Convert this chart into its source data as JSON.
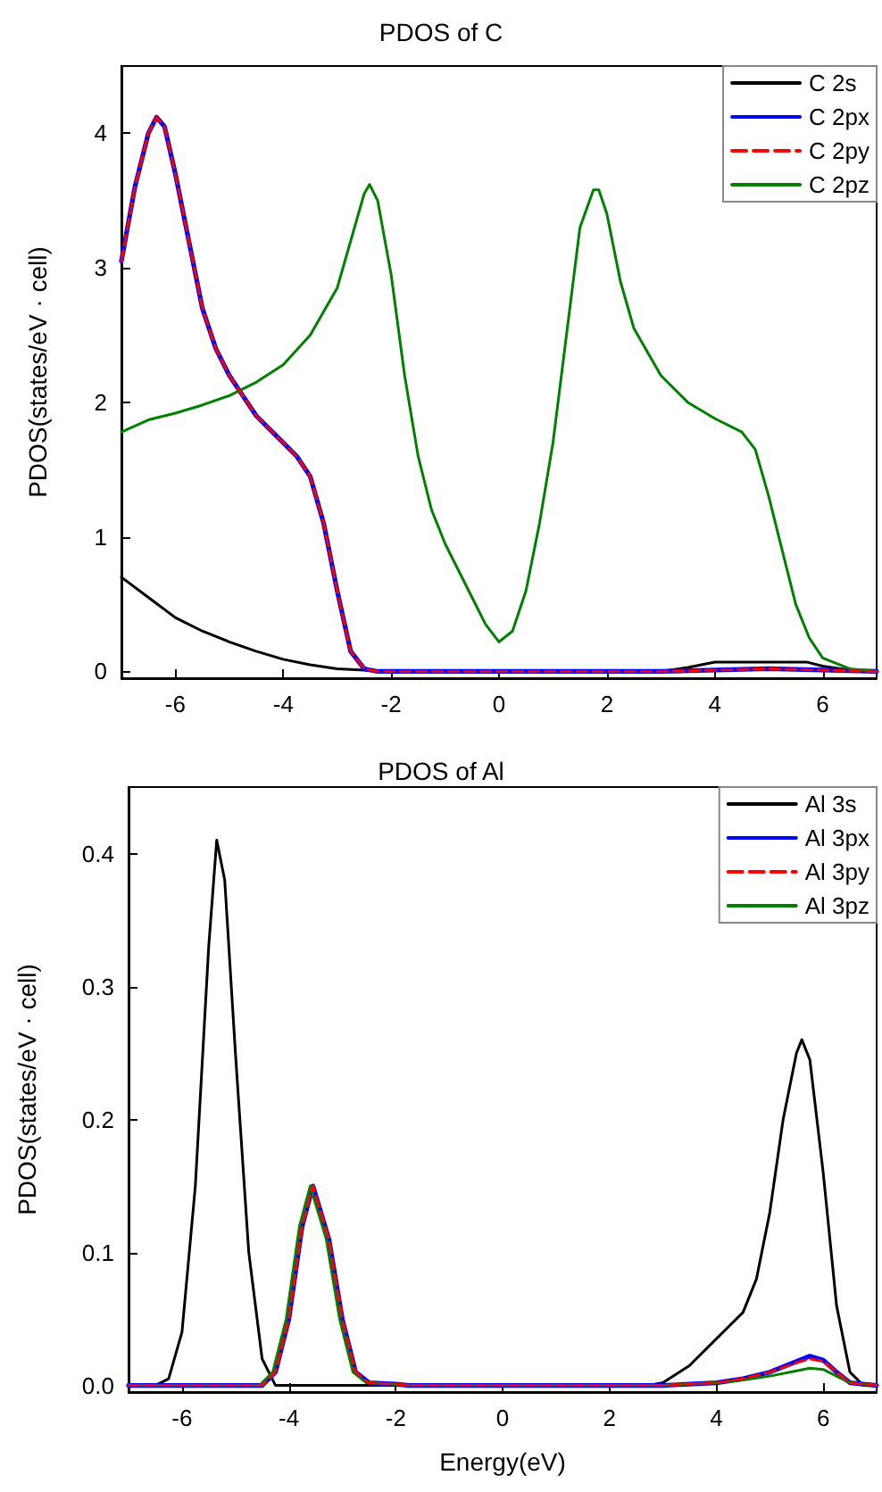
{
  "chart_data": [
    {
      "type": "line",
      "title": "PDOS of C",
      "ylabel": "PDOS(states/eV · cell)",
      "xlim": [
        -7,
        7
      ],
      "ylim": [
        -0.05,
        4.5
      ],
      "xticks": [
        -6,
        -4,
        -2,
        0,
        2,
        4,
        6
      ],
      "yticks": [
        0,
        1,
        2,
        3,
        4
      ],
      "grid": false,
      "legend": "top right",
      "marker": "none",
      "line_style": "solid",
      "series": [
        {
          "name": "C 2s",
          "color": "#000000",
          "x": [
            -7,
            -6.5,
            -6,
            -5.5,
            -5,
            -4.5,
            -4,
            -3.5,
            -3,
            -2.5,
            -2,
            0,
            3,
            3.5,
            4,
            5,
            5.7,
            6,
            6.5,
            7
          ],
          "values": [
            0.7,
            0.55,
            0.4,
            0.3,
            0.22,
            0.15,
            0.09,
            0.05,
            0.02,
            0.01,
            0,
            0,
            0,
            0.03,
            0.07,
            0.07,
            0.07,
            0.04,
            0.01,
            0
          ]
        },
        {
          "name": "C 2px",
          "color": "#0000ff",
          "x": [
            -7,
            -6.75,
            -6.5,
            -6.35,
            -6.2,
            -6,
            -5.75,
            -5.5,
            -5.25,
            -5,
            -4.75,
            -4.5,
            -4.25,
            -4,
            -3.75,
            -3.5,
            -3.25,
            -3,
            -2.75,
            -2.5,
            -2.25,
            0,
            3,
            4,
            5,
            6,
            7
          ],
          "values": [
            3.05,
            3.6,
            4.0,
            4.12,
            4.05,
            3.7,
            3.2,
            2.7,
            2.4,
            2.2,
            2.05,
            1.9,
            1.8,
            1.7,
            1.6,
            1.45,
            1.1,
            0.6,
            0.15,
            0.02,
            0,
            0,
            0,
            0.01,
            0.02,
            0.01,
            0
          ]
        },
        {
          "name": "C 2py",
          "color": "#ff0000",
          "line_style": "dashed",
          "x": [
            -7,
            -6.75,
            -6.5,
            -6.35,
            -6.2,
            -6,
            -5.75,
            -5.5,
            -5.25,
            -5,
            -4.75,
            -4.5,
            -4.25,
            -4,
            -3.75,
            -3.5,
            -3.25,
            -3,
            -2.75,
            -2.5,
            -2.25,
            0,
            3,
            4,
            5,
            6,
            7
          ],
          "values": [
            3.05,
            3.6,
            4.0,
            4.12,
            4.05,
            3.7,
            3.2,
            2.7,
            2.4,
            2.2,
            2.05,
            1.9,
            1.8,
            1.7,
            1.6,
            1.45,
            1.1,
            0.6,
            0.15,
            0.02,
            0,
            0,
            0,
            0.01,
            0.02,
            0.01,
            0
          ]
        },
        {
          "name": "C 2pz",
          "color": "#008000",
          "x": [
            -7,
            -6.5,
            -6,
            -5.5,
            -5,
            -4.5,
            -4,
            -3.5,
            -3,
            -2.75,
            -2.5,
            -2.4,
            -2.25,
            -2,
            -1.75,
            -1.5,
            -1.25,
            -1,
            -0.5,
            -0.25,
            0,
            0.25,
            0.5,
            0.75,
            1,
            1.25,
            1.5,
            1.75,
            1.85,
            2,
            2.25,
            2.5,
            3,
            3.5,
            4,
            4.5,
            4.75,
            5,
            5.25,
            5.5,
            5.75,
            6,
            6.5,
            7
          ],
          "values": [
            1.78,
            1.87,
            1.92,
            1.98,
            2.05,
            2.15,
            2.28,
            2.5,
            2.85,
            3.2,
            3.55,
            3.62,
            3.5,
            2.95,
            2.2,
            1.6,
            1.2,
            0.95,
            0.55,
            0.35,
            0.22,
            0.3,
            0.6,
            1.1,
            1.7,
            2.5,
            3.3,
            3.58,
            3.58,
            3.4,
            2.9,
            2.55,
            2.2,
            2.0,
            1.88,
            1.78,
            1.65,
            1.3,
            0.9,
            0.5,
            0.25,
            0.1,
            0.02,
            0
          ]
        }
      ]
    },
    {
      "type": "line",
      "title": "PDOS of Al",
      "xlabel": "Energy(eV)",
      "ylabel": "PDOS(states/eV · cell)",
      "xlim": [
        -7,
        7
      ],
      "ylim": [
        -0.005,
        0.45
      ],
      "xticks": [
        -6,
        -4,
        -2,
        0,
        2,
        4,
        6
      ],
      "yticks": [
        {
          "value": 0,
          "label": "0.0"
        },
        {
          "value": 0.1,
          "label": "0.1"
        },
        {
          "value": 0.2,
          "label": "0.2"
        },
        {
          "value": 0.3,
          "label": "0.3"
        },
        {
          "value": 0.4,
          "label": "0.4"
        }
      ],
      "grid": false,
      "legend": "top right",
      "marker": "none",
      "line_style": "solid",
      "series": [
        {
          "name": "Al 3s",
          "color": "#000000",
          "x": [
            -7,
            -6.5,
            -6.25,
            -6,
            -5.75,
            -5.5,
            -5.35,
            -5.2,
            -5,
            -4.75,
            -4.5,
            -4.25,
            2.75,
            3,
            3.5,
            4,
            4.25,
            4.5,
            4.75,
            5,
            5.25,
            5.5,
            5.6,
            5.75,
            6,
            6.25,
            6.5,
            6.75,
            7
          ],
          "values": [
            0,
            0,
            0.005,
            0.04,
            0.15,
            0.33,
            0.41,
            0.38,
            0.25,
            0.1,
            0.02,
            0,
            0,
            0.002,
            0.015,
            0.035,
            0.045,
            0.055,
            0.08,
            0.13,
            0.2,
            0.25,
            0.26,
            0.245,
            0.16,
            0.06,
            0.01,
            0,
            0
          ]
        },
        {
          "name": "Al 3px",
          "color": "#0000ff",
          "x": [
            -7,
            -4.5,
            -4.25,
            -4,
            -3.75,
            -3.55,
            -3.25,
            -3,
            -2.75,
            -2.5,
            -2,
            -1.75,
            3,
            4,
            4.5,
            5,
            5.5,
            5.75,
            6,
            6.25,
            6.5,
            7
          ],
          "values": [
            0,
            0,
            0.01,
            0.05,
            0.12,
            0.15,
            0.11,
            0.05,
            0.01,
            0.002,
            0.001,
            0,
            0,
            0.002,
            0.005,
            0.01,
            0.018,
            0.022,
            0.019,
            0.01,
            0.002,
            0
          ]
        },
        {
          "name": "Al 3py",
          "color": "#ff0000",
          "line_style": "dashed",
          "x": [
            -7,
            -4.5,
            -4.25,
            -4,
            -3.75,
            -3.55,
            -3.25,
            -3,
            -2.75,
            -2.5,
            -2,
            -1.75,
            3,
            4,
            4.5,
            5,
            5.5,
            5.75,
            6,
            6.25,
            6.5,
            7
          ],
          "values": [
            0,
            0,
            0.01,
            0.05,
            0.12,
            0.15,
            0.11,
            0.05,
            0.01,
            0.002,
            0.001,
            0,
            0,
            0.002,
            0.005,
            0.01,
            0.017,
            0.02,
            0.018,
            0.01,
            0.002,
            0
          ]
        },
        {
          "name": "Al 3pz",
          "color": "#008000",
          "x": [
            -7,
            -4.55,
            -4.3,
            -4.05,
            -3.8,
            -3.6,
            -3.3,
            -3.05,
            -2.8,
            -2.55,
            -2.05,
            -1.8,
            3,
            4,
            4.5,
            5,
            5.5,
            5.75,
            6,
            6.25,
            6.5,
            7
          ],
          "values": [
            0,
            0,
            0.01,
            0.05,
            0.12,
            0.15,
            0.11,
            0.05,
            0.01,
            0.002,
            0.001,
            0,
            0,
            0.002,
            0.004,
            0.007,
            0.011,
            0.013,
            0.012,
            0.007,
            0.002,
            0
          ]
        }
      ]
    }
  ]
}
